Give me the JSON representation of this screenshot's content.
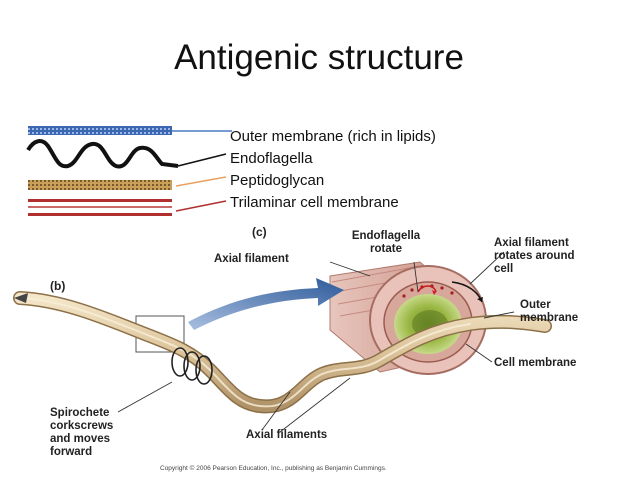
{
  "title": "Antigenic structure",
  "legend": [
    {
      "label": "Outer membrane (rich in lipids)",
      "color": "#4a7cc4"
    },
    {
      "label": "Endoflagella",
      "color": "#111111"
    },
    {
      "label": "Peptidoglycan",
      "color": "#e8a062"
    },
    {
      "label": "Trilaminar cell membrane",
      "color": "#b03030"
    }
  ],
  "figure": {
    "panel_b": "(b)",
    "panel_c": "(c)",
    "axial_filament": "Axial filament",
    "endoflagella_rotate": [
      "Endoflagella",
      "rotate"
    ],
    "axial_filament_rotates": [
      "Axial filament",
      "rotates around",
      "cell"
    ],
    "outer_membrane": [
      "Outer",
      "membrane"
    ],
    "cell_membrane": "Cell membrane",
    "spirochete": [
      "Spirochete",
      "corkscrews",
      "and moves",
      "forward"
    ],
    "axial_filaments": "Axial filaments",
    "copyright": "Copyright © 2006 Pearson Education, Inc., publishing as Benjamin Cummings."
  }
}
